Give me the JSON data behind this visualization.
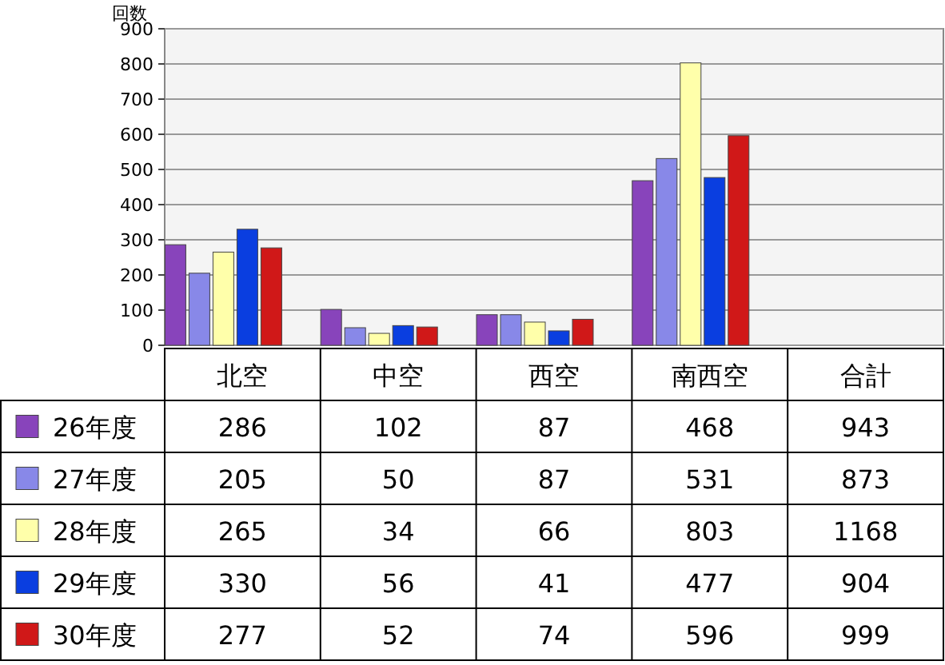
{
  "chart_data": {
    "type": "bar",
    "ylabel": "回数",
    "categories": [
      "北空",
      "中空",
      "西空",
      "南西空",
      "合計"
    ],
    "ylim": [
      0,
      900
    ],
    "yticks": [
      0,
      100,
      200,
      300,
      400,
      500,
      600,
      700,
      800,
      900
    ],
    "grid": "y",
    "legend": "bottom",
    "series": [
      {
        "name": "26年度",
        "color": "#8844bb",
        "values": [
          286,
          102,
          87,
          468,
          null
        ],
        "value_labels": [
          "286",
          "102",
          "87",
          "468",
          "943"
        ]
      },
      {
        "name": "27年度",
        "color": "#8888e8",
        "values": [
          205,
          50,
          87,
          531,
          null
        ],
        "value_labels": [
          "205",
          "50",
          "87",
          "531",
          "873"
        ]
      },
      {
        "name": "28年度",
        "color": "#ffffaa",
        "values": [
          265,
          34,
          66,
          803,
          null
        ],
        "value_labels": [
          "265",
          "34",
          "66",
          "803",
          "1168"
        ]
      },
      {
        "name": "29年度",
        "color": "#0a3ee0",
        "values": [
          330,
          56,
          41,
          477,
          null
        ],
        "value_labels": [
          "330",
          "56",
          "41",
          "477",
          "904"
        ]
      },
      {
        "name": "30年度",
        "color": "#d01818",
        "values": [
          277,
          52,
          74,
          596,
          null
        ],
        "value_labels": [
          "277",
          "52",
          "74",
          "596",
          "999"
        ]
      }
    ]
  }
}
